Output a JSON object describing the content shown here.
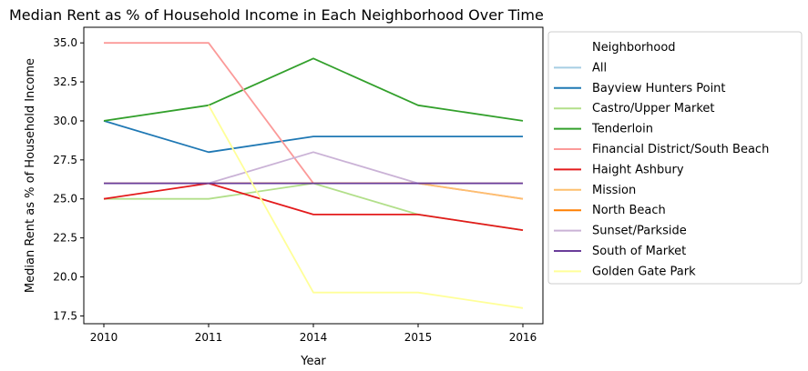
{
  "chart_data": {
    "type": "line",
    "title": "Median Rent as % of Household Income in Each Neighborhood Over Time",
    "xlabel": "Year",
    "ylabel": "Median Rent as % of Household Income",
    "categories": [
      "2010",
      "2011",
      "2014",
      "2015",
      "2016"
    ],
    "ylim": [
      17.0,
      36.0
    ],
    "yticks": [
      17.5,
      20.0,
      22.5,
      25.0,
      27.5,
      30.0,
      32.5,
      35.0
    ],
    "ytick_labels": [
      "17.5",
      "20.0",
      "22.5",
      "25.0",
      "27.5",
      "30.0",
      "32.5",
      "35.0"
    ],
    "grid": false,
    "legend": {
      "title": "Neighborhood",
      "position": "right"
    },
    "series": [
      {
        "name": "All",
        "color": "#a6cee3",
        "values": [
          26,
          26,
          26,
          26,
          26
        ]
      },
      {
        "name": "Bayview Hunters Point",
        "color": "#1f78b4",
        "values": [
          30,
          28,
          29,
          29,
          29
        ]
      },
      {
        "name": "Castro/Upper Market",
        "color": "#b2df8a",
        "values": [
          25,
          25,
          26,
          24,
          23
        ]
      },
      {
        "name": "Tenderloin",
        "color": "#33a02c",
        "values": [
          30,
          31,
          34,
          31,
          30
        ]
      },
      {
        "name": "Financial District/South Beach",
        "color": "#fb9a99",
        "values": [
          35,
          35,
          26,
          26,
          25
        ]
      },
      {
        "name": "Haight Ashbury",
        "color": "#e31a1c",
        "values": [
          25,
          26,
          24,
          24,
          23
        ]
      },
      {
        "name": "Mission",
        "color": "#fdbf6f",
        "values": [
          26,
          26,
          26,
          26,
          25
        ]
      },
      {
        "name": "North Beach",
        "color": "#ff7f00",
        "values": [
          26,
          26,
          26,
          26,
          26
        ]
      },
      {
        "name": "Sunset/Parkside",
        "color": "#cab2d6",
        "values": [
          26,
          26,
          28,
          26,
          26
        ]
      },
      {
        "name": "South of Market",
        "color": "#6a3d9a",
        "values": [
          26,
          26,
          26,
          26,
          26
        ]
      },
      {
        "name": "Golden Gate Park",
        "color": "#ffff99",
        "values": [
          null,
          31,
          19,
          19,
          18
        ]
      }
    ]
  }
}
